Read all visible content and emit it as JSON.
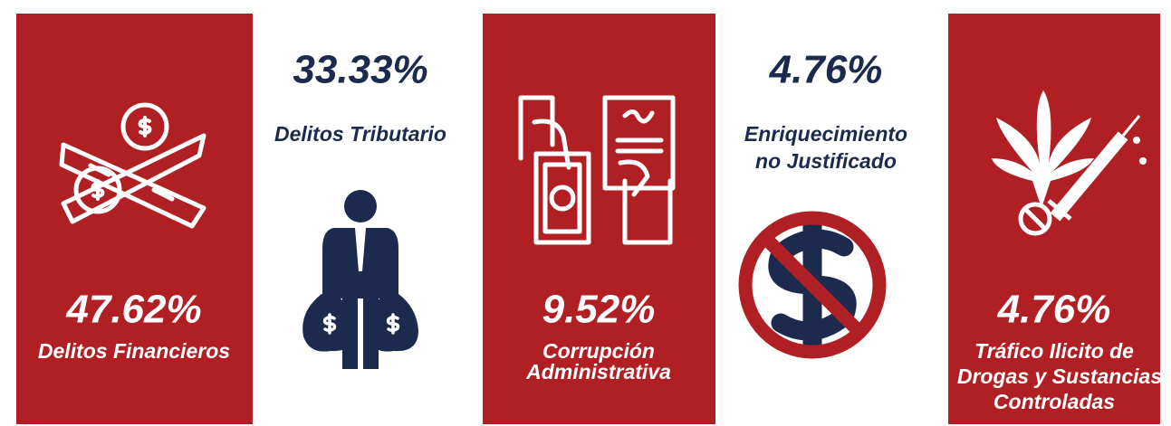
{
  "items": [
    {
      "percent": "47.62%",
      "label": [
        "Delitos Financieros"
      ]
    },
    {
      "percent": "33.33%",
      "label": [
        "Delitos Tributario"
      ]
    },
    {
      "percent": "9.52%",
      "label": [
        "Corrupción",
        "Administrativa"
      ]
    },
    {
      "percent": "4.76%",
      "label": [
        "Enriquecimiento",
        "no Justificado"
      ]
    },
    {
      "percent": "4.76%",
      "label": [
        "Tráfico Ilicito de",
        "Drogas y Sustancias",
        "Controladas"
      ]
    }
  ]
}
